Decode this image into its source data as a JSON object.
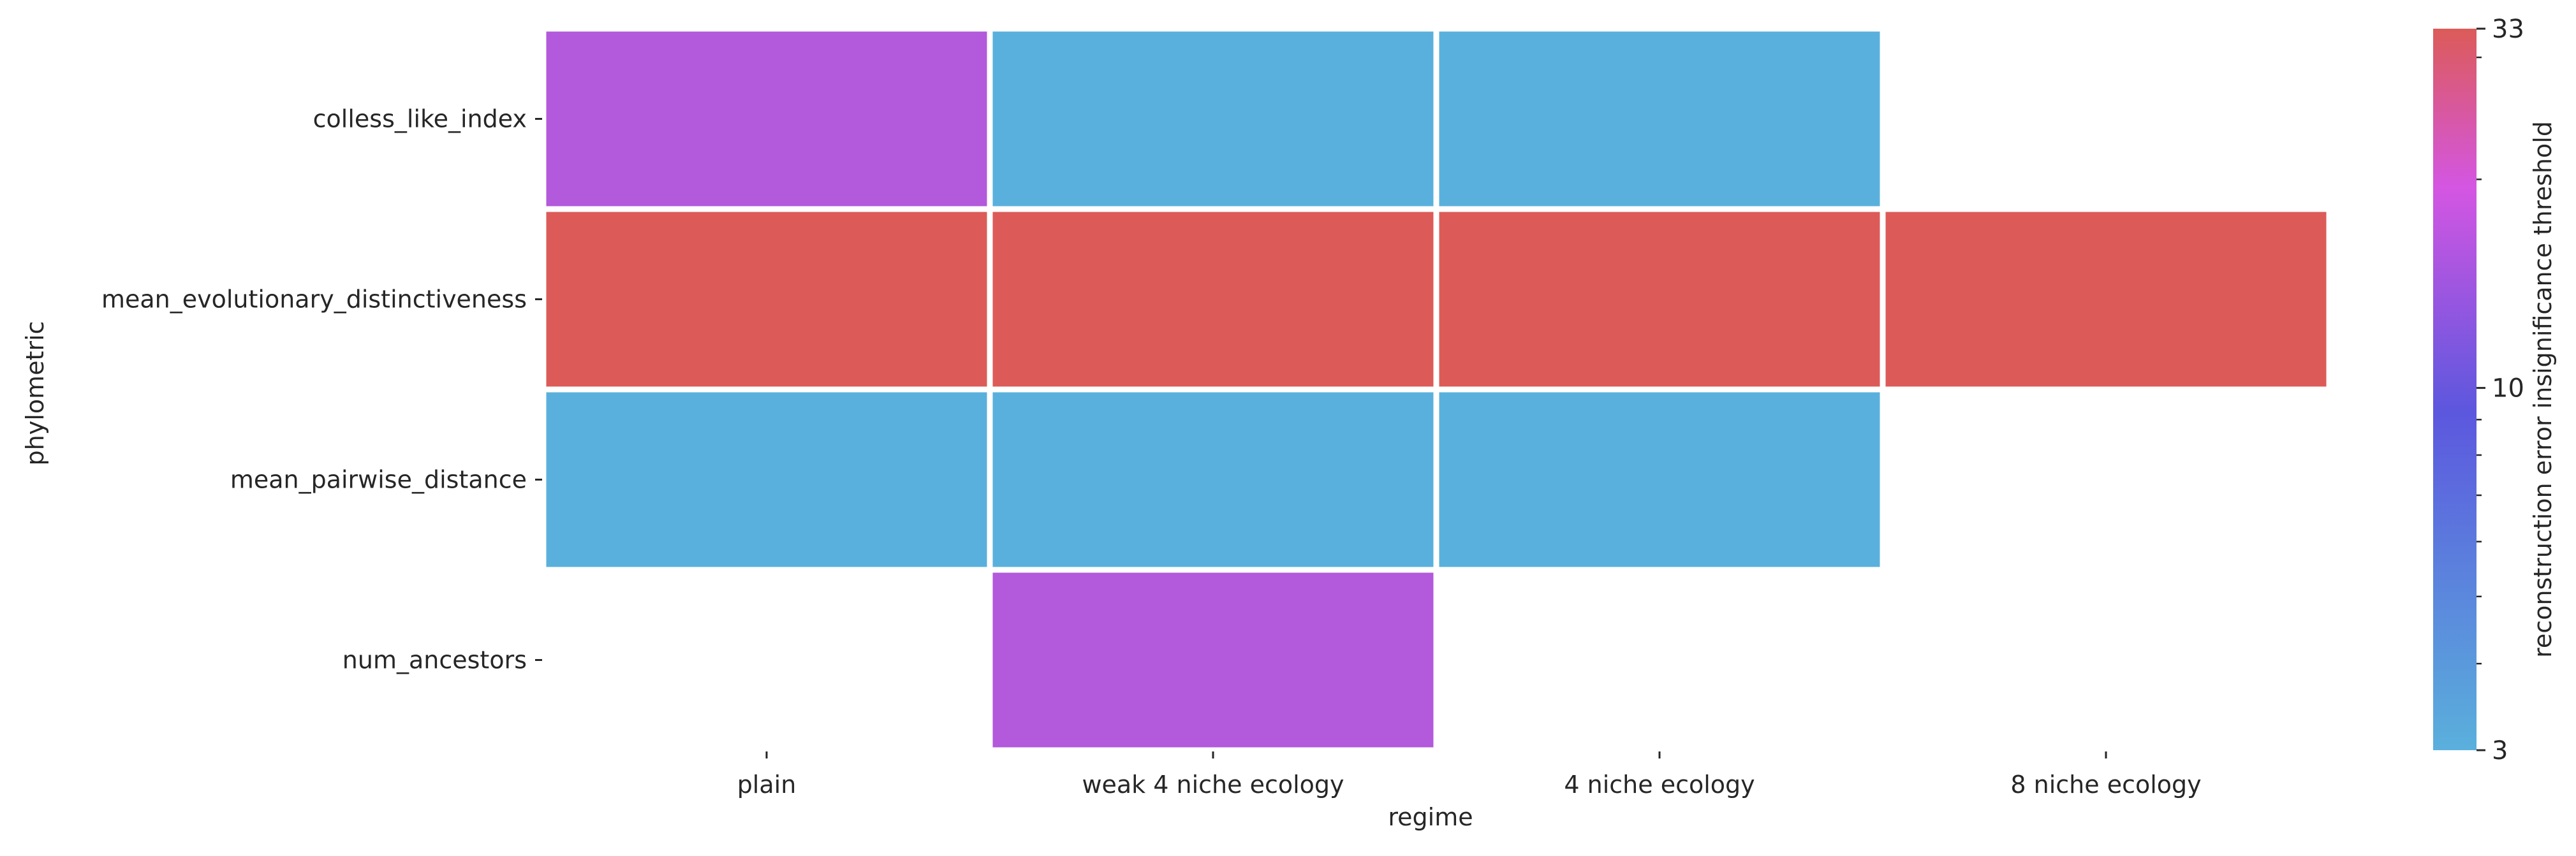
{
  "chart_data": {
    "type": "heatmap",
    "title": "",
    "xlabel": "regime",
    "ylabel": "phylometric",
    "x_categories": [
      "plain",
      "weak 4 niche ecology",
      "4 niche ecology",
      "8 niche ecology"
    ],
    "y_categories": [
      "colless_like_index",
      "mean_evolutionary_distinctiveness",
      "mean_pairwise_distance",
      "num_ancestors"
    ],
    "values": [
      [
        10,
        3,
        3,
        null
      ],
      [
        33,
        33,
        33,
        33
      ],
      [
        3,
        3,
        3,
        null
      ],
      [
        null,
        10,
        null,
        null
      ]
    ],
    "colorbar": {
      "label": "reconstruction error insignificance threshold",
      "scale": "log",
      "range": [
        3,
        33
      ],
      "tick_labels": [
        "3",
        "10",
        "33"
      ],
      "tick_values": [
        3,
        10,
        33
      ],
      "minor_tick_values": [
        4,
        5,
        6,
        7,
        8,
        9,
        20,
        30
      ],
      "colors": [
        "#5ab0dc",
        "#5c57de",
        "#d456e2",
        "#dc5b58"
      ]
    },
    "cell_color_low": "#5ab0dc",
    "cell_color_mid": "#b359dc",
    "cell_color_high": "#dc5b58"
  }
}
